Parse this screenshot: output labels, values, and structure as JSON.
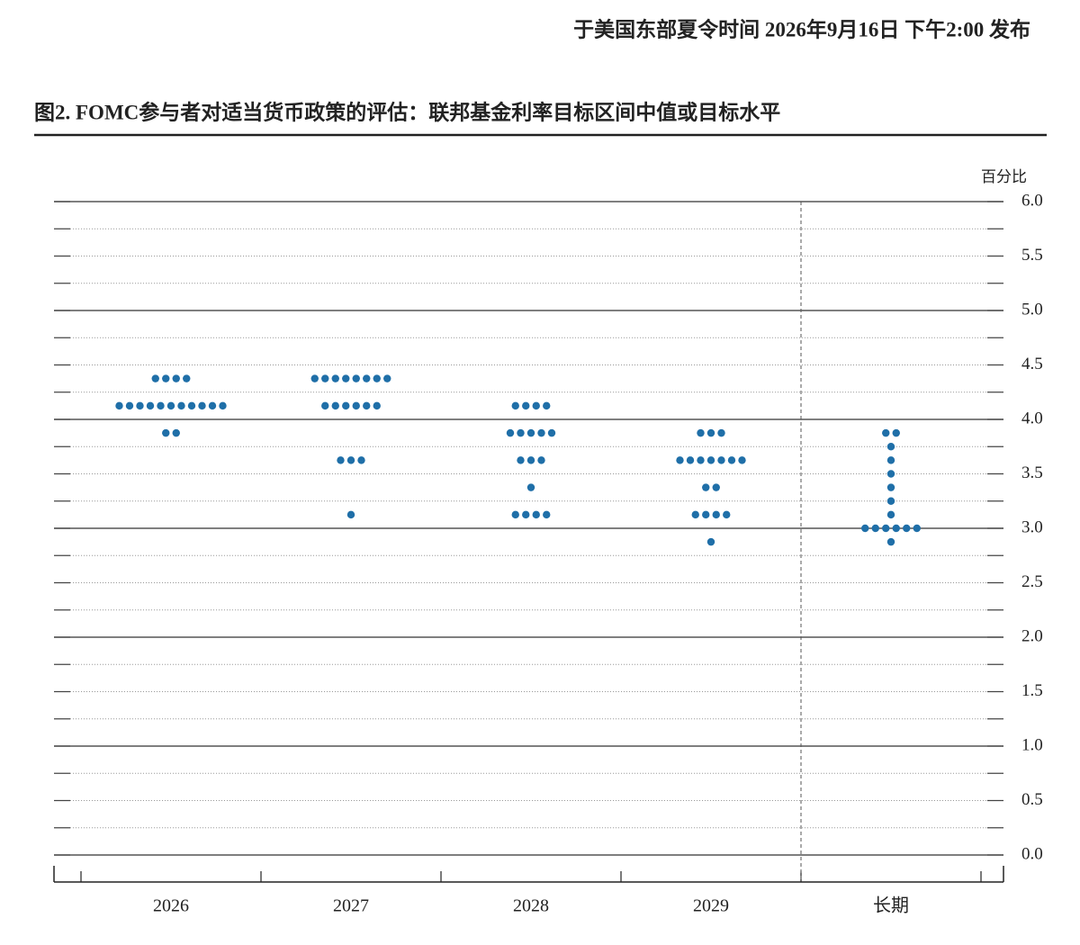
{
  "chart_data": {
    "type": "dot",
    "note": "于美国东部夏令时间 2026年9月16日 下午2:00 发布",
    "title": "图2. FOMC参与者对适当货币政策的评估：联邦基金利率目标区间中值或目标水平",
    "y_label": "百分比",
    "categories": [
      "2026",
      "2027",
      "2028",
      "2029",
      "长期"
    ],
    "color": "#1f6fa8",
    "ylim": [
      0,
      6
    ],
    "yticks": [
      {
        "value": 0,
        "label": "0.0"
      },
      {
        "value": 0.5,
        "label": "0.5"
      },
      {
        "value": 1,
        "label": "1.0"
      },
      {
        "value": 1.5,
        "label": "1.5"
      },
      {
        "value": 2,
        "label": "2.0"
      },
      {
        "value": 2.5,
        "label": "2.5"
      },
      {
        "value": 3,
        "label": "3.0"
      },
      {
        "value": 3.5,
        "label": "3.5"
      },
      {
        "value": 4,
        "label": "4.0"
      },
      {
        "value": 4.5,
        "label": "4.5"
      },
      {
        "value": 5,
        "label": "5.0"
      },
      {
        "value": 5.5,
        "label": "5.5"
      },
      {
        "value": 6,
        "label": "6.0"
      }
    ],
    "dots": [
      [
        {
          "value": 4.375,
          "count": 4
        },
        {
          "value": 4.125,
          "count": 11
        },
        {
          "value": 3.875,
          "count": 2
        }
      ],
      [
        {
          "value": 4.375,
          "count": 8
        },
        {
          "value": 4.125,
          "count": 6
        },
        {
          "value": 3.625,
          "count": 3
        },
        {
          "value": 3.125,
          "count": 1
        }
      ],
      [
        {
          "value": 4.125,
          "count": 4
        },
        {
          "value": 3.875,
          "count": 5
        },
        {
          "value": 3.625,
          "count": 3
        },
        {
          "value": 3.375,
          "count": 1
        },
        {
          "value": 3.125,
          "count": 4
        }
      ],
      [
        {
          "value": 3.875,
          "count": 3
        },
        {
          "value": 3.625,
          "count": 7
        },
        {
          "value": 3.375,
          "count": 2
        },
        {
          "value": 3.125,
          "count": 4
        },
        {
          "value": 2.875,
          "count": 1
        }
      ],
      [
        {
          "value": 3.875,
          "count": 2
        },
        {
          "value": 3.75,
          "count": 1
        },
        {
          "value": 3.625,
          "count": 1
        },
        {
          "value": 3.5,
          "count": 1
        },
        {
          "value": 3.375,
          "count": 1
        },
        {
          "value": 3.25,
          "count": 1
        },
        {
          "value": 3.125,
          "count": 1
        },
        {
          "value": 3,
          "count": 6
        },
        {
          "value": 2.875,
          "count": 1
        }
      ]
    ]
  }
}
